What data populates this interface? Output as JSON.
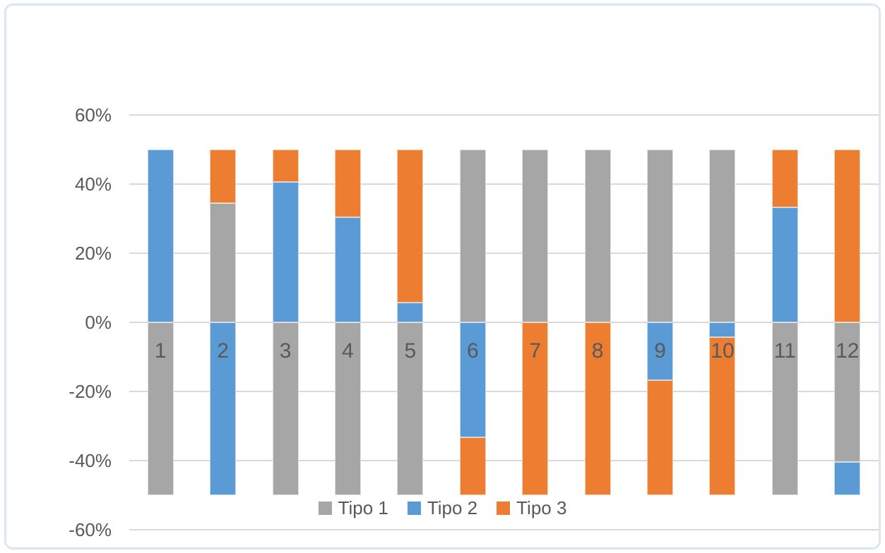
{
  "chart_data": {
    "type": "bar",
    "variant": "diverging-stacked-column",
    "title": "",
    "xlabel": "",
    "ylabel": "",
    "categories": [
      "1",
      "2",
      "3",
      "4",
      "5",
      "6",
      "7",
      "8",
      "9",
      "10",
      "11",
      "12"
    ],
    "series": [
      {
        "name": "Tipo 1",
        "color": "#A6A6A6",
        "values": [
          -50,
          34.5,
          -50,
          -50,
          -50,
          50,
          50,
          50,
          50,
          50,
          -50,
          -40.5
        ]
      },
      {
        "name": "Tipo 2",
        "color": "#5B9BD5",
        "values": [
          50,
          -50,
          40.6,
          30.4,
          5.7,
          -33.3,
          0,
          0,
          -16.7,
          -4.2,
          33.3,
          -9.5
        ]
      },
      {
        "name": "Tipo 3",
        "color": "#ED7D31",
        "values": [
          0,
          15.5,
          9.4,
          19.6,
          44.3,
          -16.7,
          -50,
          -50,
          -33.3,
          -45.8,
          16.7,
          50
        ]
      }
    ],
    "ylim": [
      -60,
      60
    ],
    "yticks": [
      60,
      40,
      20,
      0,
      -20,
      -40,
      -60
    ],
    "ytick_labels": [
      "60%",
      "40%",
      "20%",
      "0%",
      "-20%",
      "-40%",
      "-60%"
    ],
    "grid": true,
    "legend_position": "bottom-center",
    "legend_entries": [
      "Tipo 1",
      "Tipo 2",
      "Tipo 3"
    ]
  },
  "colors": {
    "background": "#FFFFFF",
    "frame_border": "#DBE6F3",
    "gridline": "#D9D9D9",
    "axis_text": "#595959",
    "category_text": "#595959",
    "legend_text": "#595959"
  }
}
